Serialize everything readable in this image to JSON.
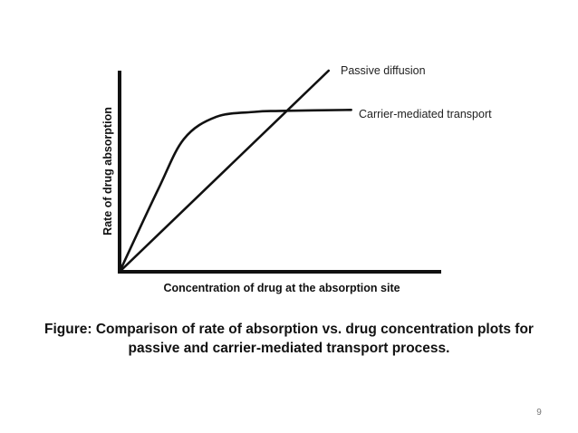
{
  "chart_data": {
    "type": "line",
    "title": "",
    "xlabel": "Concentration of drug at the absorption site",
    "ylabel": "Rate of drug absorption",
    "xlim": [
      0,
      10
    ],
    "ylim": [
      0,
      10
    ],
    "xticks": [],
    "yticks": [],
    "grid": false,
    "legend": "none",
    "series": [
      {
        "name": "Passive diffusion",
        "color": "#111111",
        "x": [
          0,
          6.5
        ],
        "y": [
          0,
          10
        ]
      },
      {
        "name": "Carrier-mediated transport",
        "color": "#111111",
        "x": [
          0,
          1.2,
          2.0,
          3.0,
          4.2,
          5.0,
          7.2
        ],
        "y": [
          0,
          4.1,
          6.6,
          7.7,
          7.95,
          8.0,
          8.05
        ]
      }
    ]
  },
  "caption": {
    "line1": "Figure: Comparison of rate of absorption vs. drug concentration plots for",
    "line2": "passive and carrier-mediated transport process."
  },
  "page_number": "9"
}
